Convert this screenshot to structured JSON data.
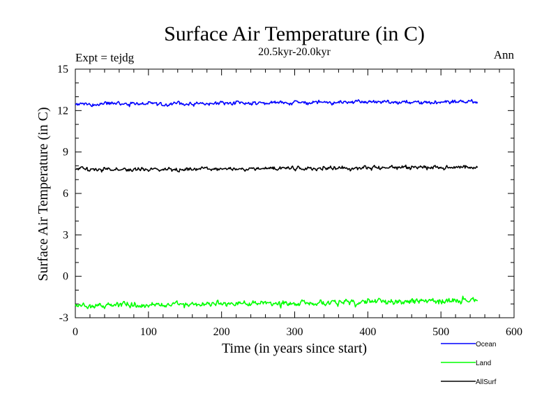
{
  "chart_data": {
    "type": "line",
    "title": "Surface Air Temperature (in C)",
    "subtitle": "20.5kyr-20.0kyr",
    "left_label": "Expt = tejdg",
    "right_label": "Ann",
    "xlabel": "Time (in years since start)",
    "ylabel": "Surface Air Temperature (in C)",
    "xlim": [
      0,
      600
    ],
    "ylim": [
      -3,
      15
    ],
    "xticks": [
      0,
      100,
      200,
      300,
      400,
      500,
      600
    ],
    "xtick_labels": [
      "0",
      "100",
      "200",
      "300",
      "400",
      "500",
      "600"
    ],
    "yticks": [
      -3,
      0,
      3,
      6,
      9,
      12,
      15
    ],
    "ytick_labels": [
      "-3",
      "0",
      "3",
      "6",
      "9",
      "12",
      "15"
    ],
    "x_range": [
      0,
      550
    ],
    "series": [
      {
        "name": "Ocean",
        "color": "#0000ff",
        "mean": 12.55,
        "noise": 0.12,
        "trend": 0.15
      },
      {
        "name": "Land",
        "color": "#00ff00",
        "mean": -1.95,
        "noise": 0.18,
        "trend": 0.35
      },
      {
        "name": "AllSurf",
        "color": "#000000",
        "mean": 7.8,
        "noise": 0.12,
        "trend": 0.2
      }
    ]
  }
}
